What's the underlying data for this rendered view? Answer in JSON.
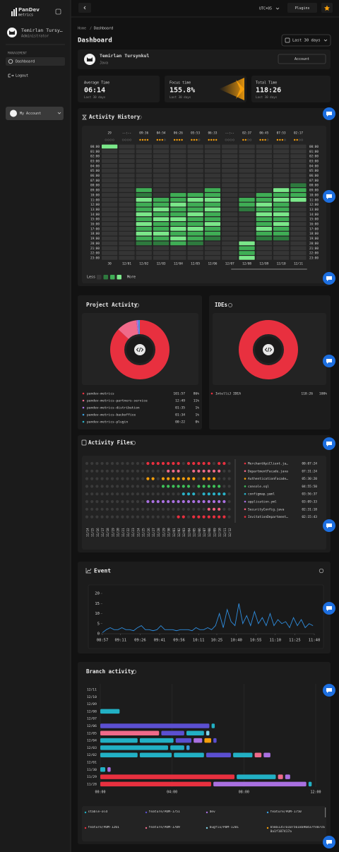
{
  "sidebar": {
    "brand": "PanDev",
    "brand_sub": "metrics",
    "user_name": "Temirlan Tursy…",
    "user_role": "Administrator",
    "section": "MANAGEMENT",
    "menu": [
      "Dashboard",
      "Logout"
    ],
    "account": "My Account"
  },
  "topbar": {
    "timezone": "UTC+05",
    "plugins": "Plugins"
  },
  "breadcrumb": [
    "Home",
    "/",
    "Dashboard"
  ],
  "page_title": "Dashboard",
  "range": "Last 30 days",
  "profile": {
    "name": "Temirlan Tursynkul",
    "language": "Java",
    "button": "Account"
  },
  "stats": [
    {
      "label": "Average Time",
      "value": "06:14",
      "note": "Last 30 days"
    },
    {
      "label": "Focus time",
      "value": "155.8%",
      "note": "Last 30 days"
    },
    {
      "label": "Total Time",
      "value": "118:26",
      "note": "Last 30 days"
    }
  ],
  "chart_data": [
    {
      "type": "heatmap",
      "title": "Activity History",
      "columns": [
        "30",
        "12/01",
        "12/02",
        "12/03",
        "12/04",
        "12/05",
        "12/06",
        "12/07",
        "12/08",
        "12/09",
        "12/10",
        "12/11"
      ],
      "column_totals": [
        "29",
        "--:--",
        "09:36",
        "04:54",
        "06:26",
        "05:53",
        "06:33",
        "--:--",
        "02:37",
        "06:45",
        "07:53",
        "02:17"
      ],
      "ratings": [
        0,
        0,
        4,
        3,
        4,
        3,
        4,
        0,
        2,
        3,
        3,
        2
      ],
      "rows": [
        "00:00",
        "01:00",
        "02:00",
        "03:00",
        "04:00",
        "05:00",
        "06:00",
        "07:00",
        "08:00",
        "09:00",
        "10:00",
        "11:00",
        "12:00",
        "13:00",
        "14:00",
        "15:00",
        "16:00",
        "17:00",
        "18:00",
        "19:00",
        "20:00",
        "21:00",
        "22:00",
        "23:00"
      ],
      "levels": [
        [
          3,
          0,
          0,
          0,
          0,
          0,
          0,
          0,
          0,
          0,
          0,
          0,
          0,
          0,
          0,
          0,
          0,
          0,
          0,
          0,
          0,
          0,
          0,
          0
        ],
        [
          0,
          0,
          0,
          0,
          0,
          0,
          0,
          0,
          0,
          0,
          0,
          0,
          0,
          0,
          0,
          0,
          0,
          0,
          0,
          0,
          0,
          0,
          0,
          0
        ],
        [
          0,
          0,
          0,
          0,
          0,
          0,
          0,
          0,
          0,
          2,
          1,
          3,
          2,
          2,
          3,
          2,
          3,
          2,
          3,
          2,
          1,
          0,
          0,
          0
        ],
        [
          0,
          0,
          0,
          0,
          0,
          0,
          0,
          0,
          0,
          0,
          0,
          2,
          2,
          3,
          2,
          3,
          2,
          2,
          3,
          2,
          1,
          0,
          0,
          0
        ],
        [
          0,
          0,
          0,
          0,
          0,
          0,
          0,
          0,
          0,
          0,
          2,
          2,
          3,
          2,
          2,
          3,
          2,
          3,
          2,
          3,
          2,
          0,
          0,
          0
        ],
        [
          0,
          0,
          0,
          0,
          0,
          0,
          0,
          0,
          0,
          0,
          2,
          3,
          2,
          2,
          3,
          2,
          2,
          3,
          2,
          2,
          1,
          0,
          0,
          0
        ],
        [
          0,
          0,
          0,
          0,
          0,
          0,
          0,
          0,
          0,
          2,
          2,
          3,
          2,
          3,
          2,
          2,
          3,
          2,
          2,
          1,
          0,
          0,
          0,
          0
        ],
        [
          0,
          0,
          0,
          0,
          0,
          0,
          0,
          0,
          0,
          0,
          0,
          0,
          0,
          0,
          0,
          0,
          0,
          0,
          0,
          0,
          0,
          0,
          0,
          0
        ],
        [
          0,
          0,
          0,
          0,
          0,
          0,
          0,
          0,
          0,
          0,
          0,
          2,
          2,
          1,
          0,
          0,
          0,
          0,
          0,
          0,
          3,
          2,
          2,
          3
        ],
        [
          0,
          0,
          0,
          0,
          0,
          0,
          0,
          0,
          0,
          0,
          2,
          2,
          3,
          2,
          3,
          2,
          2,
          3,
          2,
          1,
          0,
          0,
          0,
          0
        ],
        [
          0,
          0,
          0,
          0,
          0,
          0,
          0,
          0,
          0,
          3,
          2,
          3,
          2,
          2,
          3,
          2,
          3,
          2,
          2,
          1,
          0,
          0,
          0,
          0
        ],
        [
          0,
          0,
          0,
          0,
          0,
          0,
          0,
          0,
          1,
          2,
          2,
          3,
          0,
          0,
          0,
          0,
          0,
          0,
          0,
          0,
          0,
          0,
          0,
          0
        ]
      ],
      "colors": [
        "#353535",
        "#2e7a3e",
        "#3fae55",
        "#7be88a"
      ],
      "legend": [
        "Less",
        "More"
      ]
    },
    {
      "type": "pie",
      "title": "Project Activity",
      "labels": [
        "pandev-metrics",
        "pandev-metrics-partners-service",
        "pandev-metrics-distribution",
        "pandev-metrics-backoffice",
        "pandev-metrics-plugin"
      ],
      "durations": [
        "101:57",
        "12:49",
        "01:35",
        "01:34",
        "00:22"
      ],
      "values": [
        86,
        11,
        1,
        1,
        0
      ],
      "value_labels": [
        "86%",
        "11%",
        "1%",
        "1%",
        "0%"
      ],
      "colors": [
        "#e8303f",
        "#f06a8a",
        "#a970e0",
        "#3aa0e0",
        "#2ab3c9"
      ]
    },
    {
      "type": "pie",
      "title": "IDEs",
      "labels": [
        "IntelliJ IDEA"
      ],
      "durations": [
        "118:26"
      ],
      "values": [
        100
      ],
      "value_labels": [
        "100%"
      ],
      "colors": [
        "#e8303f"
      ]
    },
    {
      "type": "dot-matrix",
      "title": "Activity Files",
      "dates": [
        "11/14",
        "11/15",
        "11/16",
        "11/17",
        "11/18",
        "11/19",
        "11/20",
        "11/21",
        "11/22",
        "11/23",
        "11/24",
        "11/25",
        "11/26",
        "11/27",
        "11/28",
        "11/29",
        "11/30",
        "12/01",
        "12/02",
        "12/03",
        "12/04",
        "12/05",
        "12/06",
        "12/07",
        "12/08",
        "12/09",
        "12/10",
        "12/11",
        "12/12"
      ],
      "files": [
        {
          "name": "MerchantApiClient.ja…",
          "time": "00:07:24",
          "color": "#e8303f",
          "activity": [
            0,
            0,
            0,
            0,
            0,
            0,
            0,
            0,
            0,
            0,
            0,
            0,
            1,
            1,
            1,
            1,
            1,
            1,
            1,
            0,
            1,
            1,
            1,
            1,
            1,
            0,
            1,
            1,
            0
          ]
        },
        {
          "name": "DepartmentFacade.java",
          "time": "07:31:24",
          "color": "#f06a8a",
          "activity": [
            0,
            0,
            0,
            0,
            0,
            0,
            0,
            0,
            0,
            0,
            0,
            0,
            0,
            0,
            0,
            0,
            1,
            1,
            1,
            0,
            0,
            1,
            1,
            1,
            1,
            1,
            1,
            0,
            0
          ]
        },
        {
          "name": "AuthenticationFacade…",
          "time": "05:30:20",
          "color": "#f59e0b",
          "activity": [
            0,
            0,
            0,
            0,
            0,
            0,
            0,
            0,
            0,
            0,
            0,
            0,
            1,
            1,
            0,
            1,
            1,
            1,
            1,
            1,
            1,
            1,
            0,
            1,
            1,
            1,
            0,
            0,
            0
          ]
        },
        {
          "name": "console.sql",
          "time": "04:55:50",
          "color": "#3fc25a",
          "activity": [
            0,
            0,
            0,
            0,
            0,
            0,
            0,
            0,
            0,
            0,
            0,
            0,
            0,
            0,
            0,
            1,
            1,
            1,
            1,
            1,
            1,
            0,
            1,
            1,
            1,
            1,
            1,
            0,
            0
          ]
        },
        {
          "name": "configmap.yaml",
          "time": "03:56:37",
          "color": "#2ab3c9",
          "activity": [
            0,
            0,
            0,
            0,
            0,
            0,
            0,
            0,
            0,
            0,
            0,
            0,
            0,
            0,
            0,
            0,
            0,
            0,
            0,
            1,
            1,
            1,
            0,
            1,
            1,
            1,
            1,
            1,
            0
          ]
        },
        {
          "name": "application.yml",
          "time": "03:09:33",
          "color": "#a970e0",
          "activity": [
            0,
            0,
            0,
            0,
            0,
            0,
            0,
            0,
            0,
            0,
            0,
            0,
            1,
            1,
            1,
            1,
            1,
            1,
            1,
            1,
            1,
            1,
            1,
            1,
            1,
            1,
            1,
            1,
            0
          ]
        },
        {
          "name": "SecurityConfig.java",
          "time": "02:31:18",
          "color": "#f0607a",
          "activity": [
            0,
            0,
            0,
            0,
            0,
            0,
            0,
            0,
            0,
            0,
            0,
            0,
            0,
            0,
            0,
            0,
            0,
            0,
            0,
            0,
            0,
            0,
            0,
            0,
            1,
            1,
            1,
            0,
            0
          ]
        },
        {
          "name": "InvitationDepartment…",
          "time": "02:15:43",
          "color": "#e8303f",
          "activity": [
            0,
            0,
            0,
            0,
            0,
            0,
            0,
            0,
            0,
            0,
            0,
            0,
            0,
            0,
            0,
            0,
            0,
            0,
            1,
            1,
            0,
            1,
            1,
            1,
            1,
            1,
            1,
            1,
            0
          ]
        }
      ]
    },
    {
      "type": "line",
      "title": "Event",
      "color": "#2f8ee0",
      "x": [
        "08:57",
        "09:00",
        "09:03",
        "09:06",
        "09:09",
        "09:12",
        "09:15",
        "09:18",
        "09:21",
        "09:24",
        "09:27",
        "09:30",
        "09:33",
        "09:36",
        "09:39",
        "09:42",
        "09:45",
        "09:48",
        "09:51",
        "09:54",
        "09:57",
        "10:00",
        "10:03",
        "10:06",
        "10:09",
        "10:12",
        "10:15",
        "10:18",
        "10:21",
        "10:24",
        "10:27",
        "10:30",
        "10:33",
        "10:36",
        "10:39",
        "10:42",
        "10:45",
        "10:48",
        "10:51",
        "10:54",
        "10:57",
        "11:00",
        "11:03",
        "11:06",
        "11:09",
        "11:12",
        "11:15",
        "11:18",
        "11:21",
        "11:24",
        "11:27",
        "11:30",
        "11:33",
        "11:36",
        "11:39"
      ],
      "values": [
        0.5,
        2,
        3,
        2,
        2,
        3,
        2,
        2,
        1.5,
        3,
        4,
        2,
        2,
        1.5,
        2,
        4,
        2,
        2,
        2,
        1.5,
        2,
        2,
        2,
        1.5,
        3,
        2,
        2,
        3,
        2,
        4,
        10,
        3,
        12,
        6,
        4,
        15,
        5,
        9,
        4,
        11,
        5,
        8,
        4,
        10,
        4,
        7,
        5,
        6,
        3,
        8,
        4,
        7,
        3,
        5,
        4
      ],
      "xlim": [
        "08:57",
        "11:40"
      ],
      "xticks": [
        "08:57",
        "09:11",
        "09:26",
        "09:41",
        "09:56",
        "10:11",
        "10:25",
        "10:40",
        "10:55",
        "11:10",
        "11:25",
        "11:40"
      ],
      "ylim": [
        0,
        20
      ],
      "yticks": [
        0,
        5,
        10,
        15,
        20
      ]
    },
    {
      "type": "gantt",
      "title": "Branch activity",
      "categories": [
        "12/11",
        "12/10",
        "12/09",
        "12/08",
        "12/07",
        "12/06",
        "12/05",
        "12/04",
        "12/03",
        "12/02",
        "12/01",
        "11/30",
        "11/29",
        "11/28"
      ],
      "xlim": [
        0,
        12
      ],
      "xticks": [
        {
          "value": 0,
          "label": "00:00"
        },
        {
          "value": 4,
          "label": "04:00"
        },
        {
          "value": 8,
          "label": "08:00"
        },
        {
          "value": 12,
          "label": "12:00"
        }
      ],
      "series": [
        {
          "name": "stable-old",
          "color": "#22b0c4",
          "segments": [
            {
              "row": "12/08",
              "start": 0,
              "end": 1.1
            },
            {
              "row": "12/06",
              "start": 6.2,
              "end": 6.4
            },
            {
              "row": "12/05",
              "start": 4.8,
              "end": 5.8
            },
            {
              "row": "12/04",
              "start": 0,
              "end": 2.1
            },
            {
              "row": "12/04",
              "start": 2.2,
              "end": 4.1
            },
            {
              "row": "12/03",
              "start": 0,
              "end": 3.8
            },
            {
              "row": "12/03",
              "start": 3.9,
              "end": 4.7
            },
            {
              "row": "12/02",
              "start": 0,
              "end": 2.1
            },
            {
              "row": "12/02",
              "start": 2.2,
              "end": 4.0
            },
            {
              "row": "12/02",
              "start": 4.1,
              "end": 5.8
            },
            {
              "row": "12/02",
              "start": 7.4,
              "end": 8.5
            },
            {
              "row": "11/30",
              "start": 0,
              "end": 0.3
            },
            {
              "row": "11/29",
              "start": 7.6,
              "end": 9.8
            },
            {
              "row": "11/28",
              "start": 11.6,
              "end": 11.8
            }
          ]
        },
        {
          "name": "feature/PDM-1751",
          "color": "#5b4fd0",
          "segments": [
            {
              "row": "12/06",
              "start": 0,
              "end": 6.1
            },
            {
              "row": "12/05",
              "start": 3.4,
              "end": 4.7
            },
            {
              "row": "12/04",
              "start": 4.2,
              "end": 5.1
            },
            {
              "row": "12/04",
              "start": 6.3,
              "end": 6.5
            },
            {
              "row": "12/02",
              "start": 5.9,
              "end": 7.3
            }
          ]
        },
        {
          "name": "dev",
          "color": "#a970e0",
          "segments": [
            {
              "row": "12/04",
              "start": 5.2,
              "end": 5.7
            },
            {
              "row": "12/02",
              "start": 9.1,
              "end": 9.5
            },
            {
              "row": "11/30",
              "start": 0.4,
              "end": 0.6
            },
            {
              "row": "11/29",
              "start": 10.3,
              "end": 10.6
            },
            {
              "row": "11/28",
              "start": 6.3,
              "end": 11.5
            }
          ]
        },
        {
          "name": "feature/PDM-1750",
          "color": "#3aa0e0",
          "segments": [
            {
              "row": "12/03",
              "start": 4.8,
              "end": 5.0
            }
          ]
        },
        {
          "name": "feature/PDM-1201",
          "color": "#e8303f",
          "segments": [
            {
              "row": "11/29",
              "start": 0,
              "end": 7.5
            },
            {
              "row": "11/28",
              "start": 0,
              "end": 6.2
            }
          ]
        },
        {
          "name": "feature/PDM-1709",
          "color": "#f06a8a",
          "segments": [
            {
              "row": "12/05",
              "start": 0,
              "end": 3.3
            },
            {
              "row": "12/02",
              "start": 8.6,
              "end": 9.0
            },
            {
              "row": "11/29",
              "start": 9.9,
              "end": 10.2
            }
          ]
        },
        {
          "name": "bugfix/PDM-1201",
          "color": "#7fd3e8",
          "segments": [
            {
              "row": "12/05",
              "start": 5.9,
              "end": 6.1
            }
          ]
        },
        {
          "name": "b50a1357a1075618a90d37fe07c60a1f107417a",
          "color": "#f59e0b",
          "segments": [
            {
              "row": "12/04",
              "start": 5.8,
              "end": 6.2
            }
          ]
        }
      ]
    }
  ]
}
